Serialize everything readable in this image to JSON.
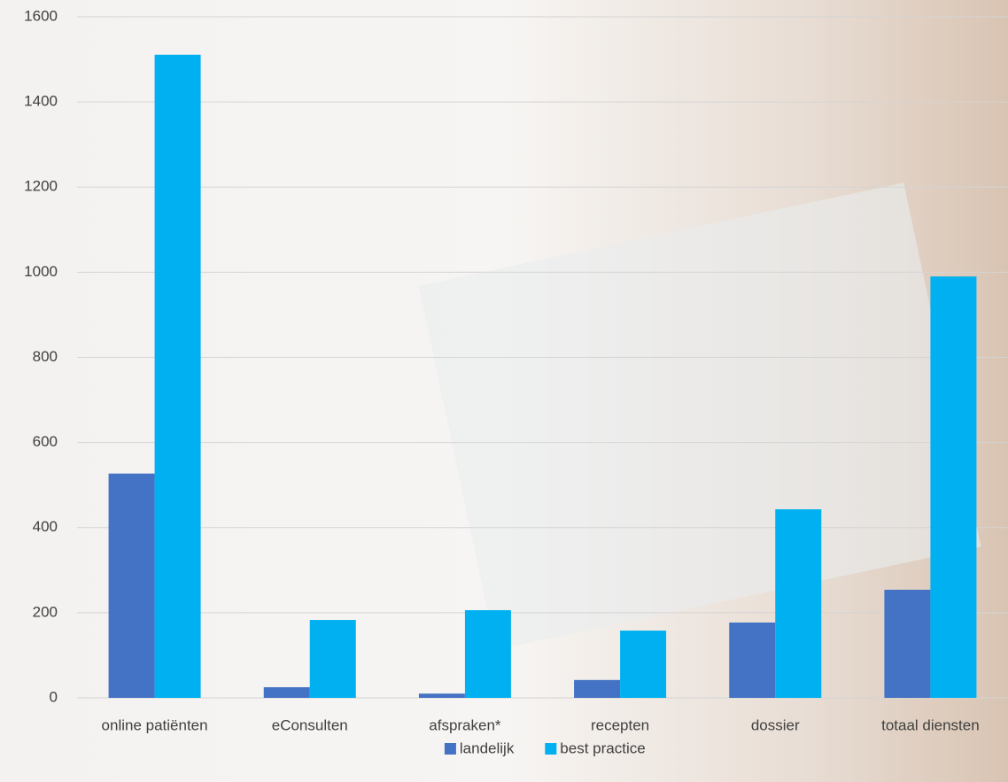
{
  "chart_data": {
    "type": "bar",
    "categories": [
      "online patiënten",
      "eConsulten",
      "afspraken*",
      "recepten",
      "dossier",
      "totaal diensten"
    ],
    "series": [
      {
        "name": "landelijk",
        "color": "#4472c4",
        "values": [
          527,
          25,
          10,
          42,
          177,
          254
        ]
      },
      {
        "name": "best practice",
        "color": "#00b0f0",
        "values": [
          1511,
          183,
          206,
          158,
          443,
          990
        ]
      }
    ],
    "ylim": [
      0,
      1600
    ],
    "yticks": [
      0,
      200,
      400,
      600,
      800,
      1000,
      1200,
      1400,
      1600
    ],
    "grid": true,
    "legend": "bottom"
  }
}
